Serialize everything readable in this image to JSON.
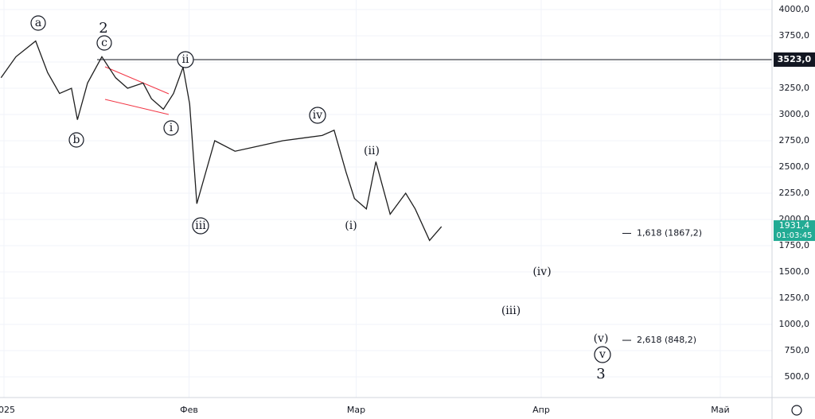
{
  "chart_data": {
    "type": "line",
    "series": [
      {
        "color": "#1f1f1f",
        "x": [
          -0.5,
          2,
          5.3,
          7.3,
          9.3,
          11.3,
          12.3,
          14,
          16.4,
          18.7,
          20.7,
          23.3,
          24.7,
          26.7,
          28.4,
          30,
          31.1,
          32.3,
          35.3,
          38.7,
          42.7,
          46.7,
          53.3,
          55.3,
          57.3,
          58.7,
          60.7,
          62.3,
          64.7,
          67.3,
          68.9,
          71.3,
          73.3
        ],
        "values": [
          3350,
          3550,
          3700,
          3400,
          3200,
          3250,
          2950,
          3300,
          3550,
          3350,
          3250,
          3300,
          3150,
          3050,
          3200,
          3450,
          3100,
          2150,
          2750,
          2650,
          2700,
          2750,
          2800,
          2850,
          2450,
          2200,
          2100,
          2550,
          2050,
          2250,
          2100,
          1800,
          1931.4
        ]
      }
    ],
    "xlim": [
      -0.67,
      128.67
    ],
    "xticks": [
      {
        "value": 0,
        "label": "2025"
      },
      {
        "value": 31,
        "label": "Фев"
      },
      {
        "value": 59,
        "label": "Мар"
      },
      {
        "value": 90,
        "label": "Апр"
      },
      {
        "value": 120,
        "label": "Май"
      }
    ],
    "ylim": [
      303,
      4091
    ],
    "yticks": [
      {
        "value": 500,
        "label": "500,0"
      },
      {
        "value": 750,
        "label": "750,0"
      },
      {
        "value": 1000,
        "label": "1000,0"
      },
      {
        "value": 1250,
        "label": "1250,0"
      },
      {
        "value": 1500,
        "label": "1500,0"
      },
      {
        "value": 1750,
        "label": "1750,0"
      },
      {
        "value": 2000,
        "label": "2000,0"
      },
      {
        "value": 2250,
        "label": "2250,0"
      },
      {
        "value": 2500,
        "label": "2500,0"
      },
      {
        "value": 2750,
        "label": "2750,0"
      },
      {
        "value": 3000,
        "label": "3000,0"
      },
      {
        "value": 3250,
        "label": "3250,0"
      },
      {
        "value": 3500,
        "label": "3500,0"
      },
      {
        "value": 3750,
        "label": "3750,0"
      },
      {
        "value": 4000,
        "label": "4000,0"
      }
    ],
    "grid": true,
    "hline": {
      "value": 3523,
      "label": "3523,0"
    },
    "last_price": {
      "value": 1931.4,
      "label": "1931,4"
    },
    "timer": "01:03:45",
    "fib_levels": [
      {
        "value": 1867.2,
        "label": "1,618 (1867,2)"
      },
      {
        "value": 848.2,
        "label": "2,618 (848,2)"
      }
    ],
    "annotations": [
      "a",
      "2",
      "c",
      "b",
      "ii",
      "i",
      "iii",
      "iv",
      "(ii)",
      "(i)",
      "(iv)",
      "(iii)",
      "(v)",
      "v",
      "3"
    ]
  }
}
